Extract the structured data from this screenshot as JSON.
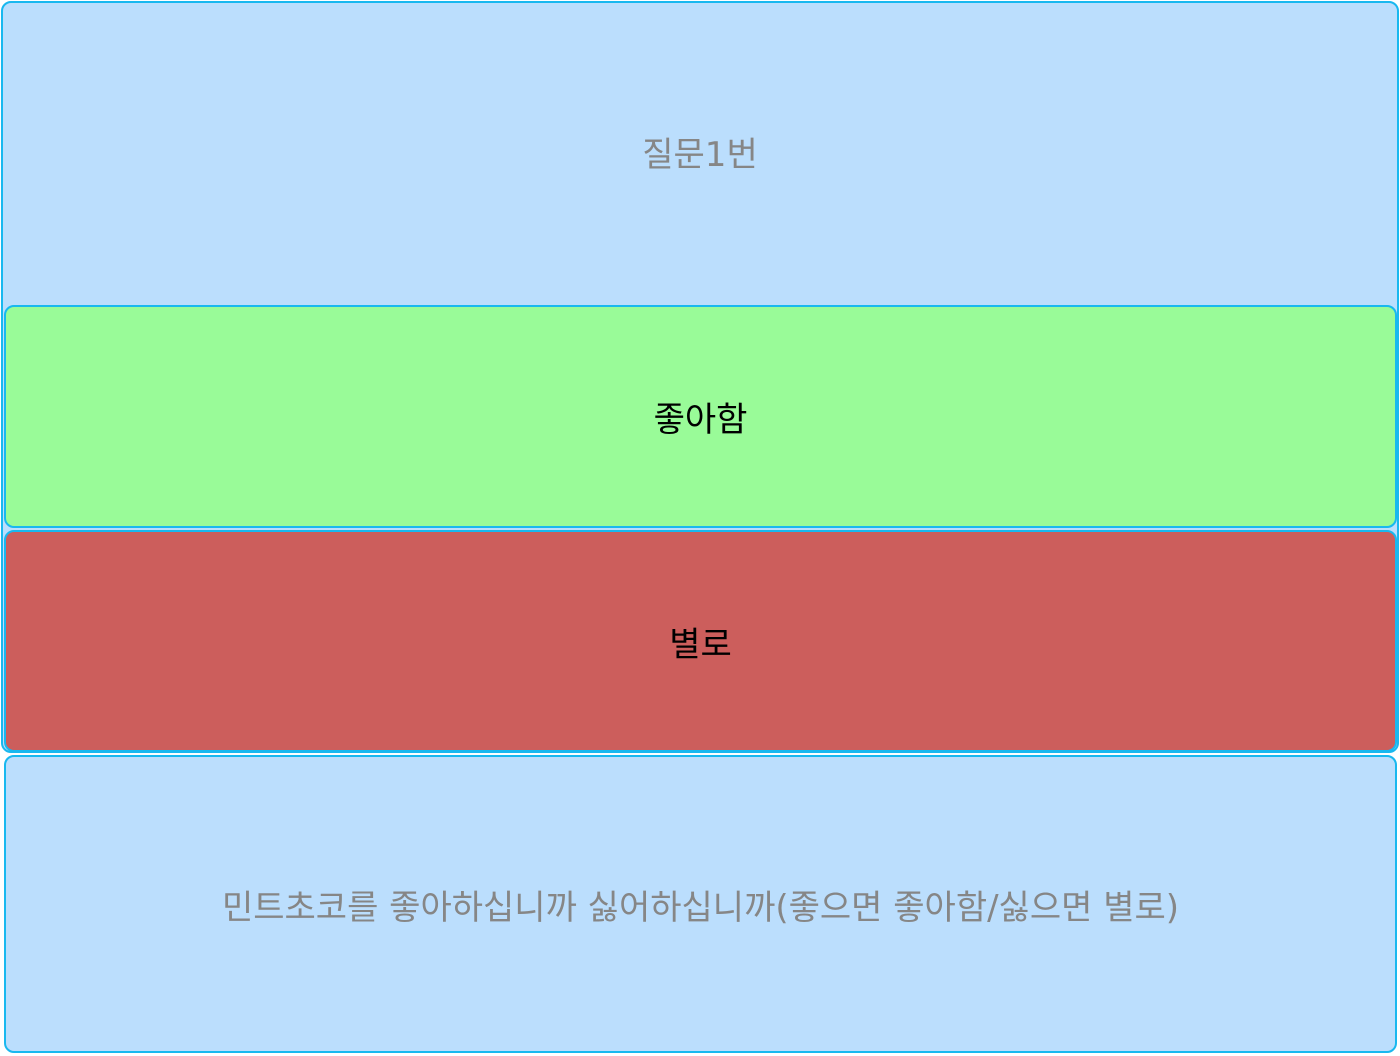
{
  "question": {
    "title": "질문1번",
    "text": "민트초코를 좋아하십니까 싫어하십니까(좋으면 좋아함/싫으면 별로)"
  },
  "answers": {
    "like_label": "좋아함",
    "dislike_label": "별로"
  },
  "colors": {
    "panel_background": "#bbdefd",
    "border": "#19b8ef",
    "like_background": "#99fb98",
    "dislike_background": "#cc5e5c",
    "muted_text": "#868686"
  }
}
